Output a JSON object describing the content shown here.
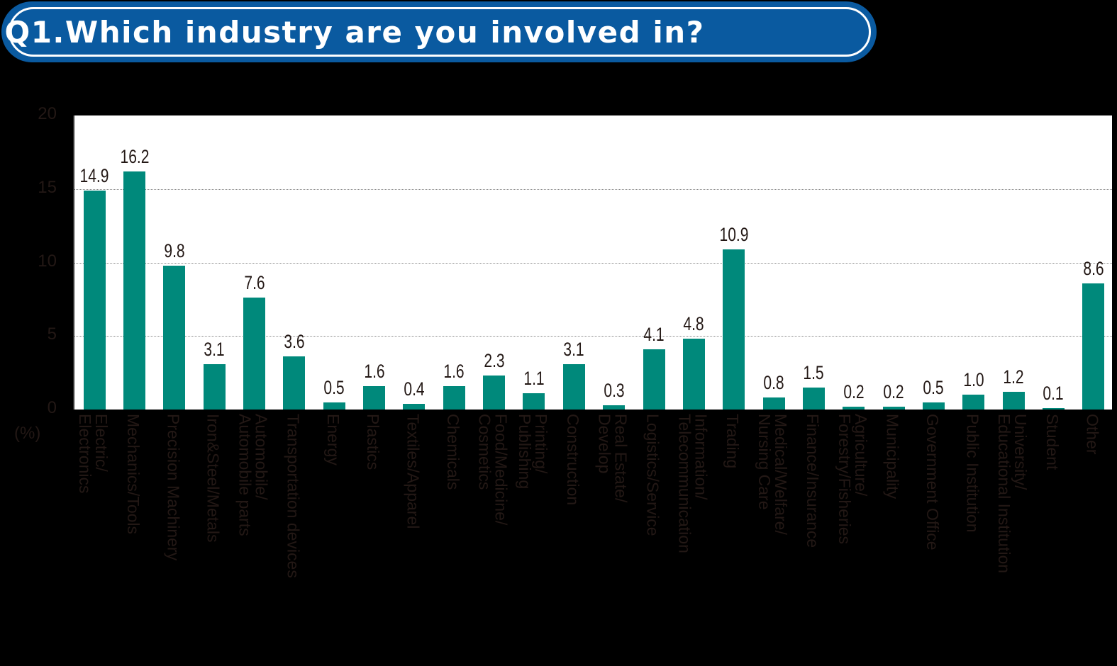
{
  "title": "Q1.Which industry are you involved in?",
  "unit_label": "(%)",
  "colors": {
    "bar": "#00897b",
    "title_bg": "#0a5aa0",
    "text": "#231815",
    "background": "#000000",
    "plot_bg": "#ffffff"
  },
  "chart_data": {
    "type": "bar",
    "title": "Q1.Which industry are you involved in?",
    "xlabel": "",
    "ylabel": "(%)",
    "ylim": [
      0,
      20
    ],
    "yticks": [
      0,
      5,
      10,
      15,
      20
    ],
    "grid": "horizontal dotted",
    "legend": "none",
    "categories": [
      "Electric/\nElectronics",
      "Mechanics/Tools",
      "Precision Machinery",
      "Iron&Steel/Metals",
      "Automobile/\nAutomobile parts",
      "Transportation devices",
      "Energy",
      "Plastics",
      "Textiles/Apparel",
      "Chemicals",
      "Food/Medicine/\nCosmetics",
      "Printing/\nPublishing",
      "Construction",
      "Real Estate/\nDevelop",
      "Logistics/Service",
      "Information/\nTelecommunication",
      "Trading",
      "Medical/Welfare/\nNursing Care",
      "Finance/Insurance",
      "Agriculture/\nForestry/Fisheries",
      "Municipality",
      "Government Office",
      "Public Institution",
      "University/\nEducational Institution",
      "Student",
      "Other"
    ],
    "values": [
      14.9,
      16.2,
      9.8,
      3.1,
      7.6,
      3.6,
      0.5,
      1.6,
      0.4,
      1.6,
      2.3,
      1.1,
      3.1,
      0.3,
      4.1,
      4.8,
      10.9,
      0.8,
      1.5,
      0.2,
      0.2,
      0.5,
      1.0,
      1.2,
      0.1,
      8.6
    ],
    "value_labels": [
      "14.9",
      "16.2",
      "9.8",
      "3.1",
      "7.6",
      "3.6",
      "0.5",
      "1.6",
      "0.4",
      "1.6",
      "2.3",
      "1.1",
      "3.1",
      "0.3",
      "4.1",
      "4.8",
      "10.9",
      "0.8",
      "1.5",
      "0.2",
      "0.2",
      "0.5",
      "1.0",
      "1.2",
      "0.1",
      "8.6"
    ]
  }
}
